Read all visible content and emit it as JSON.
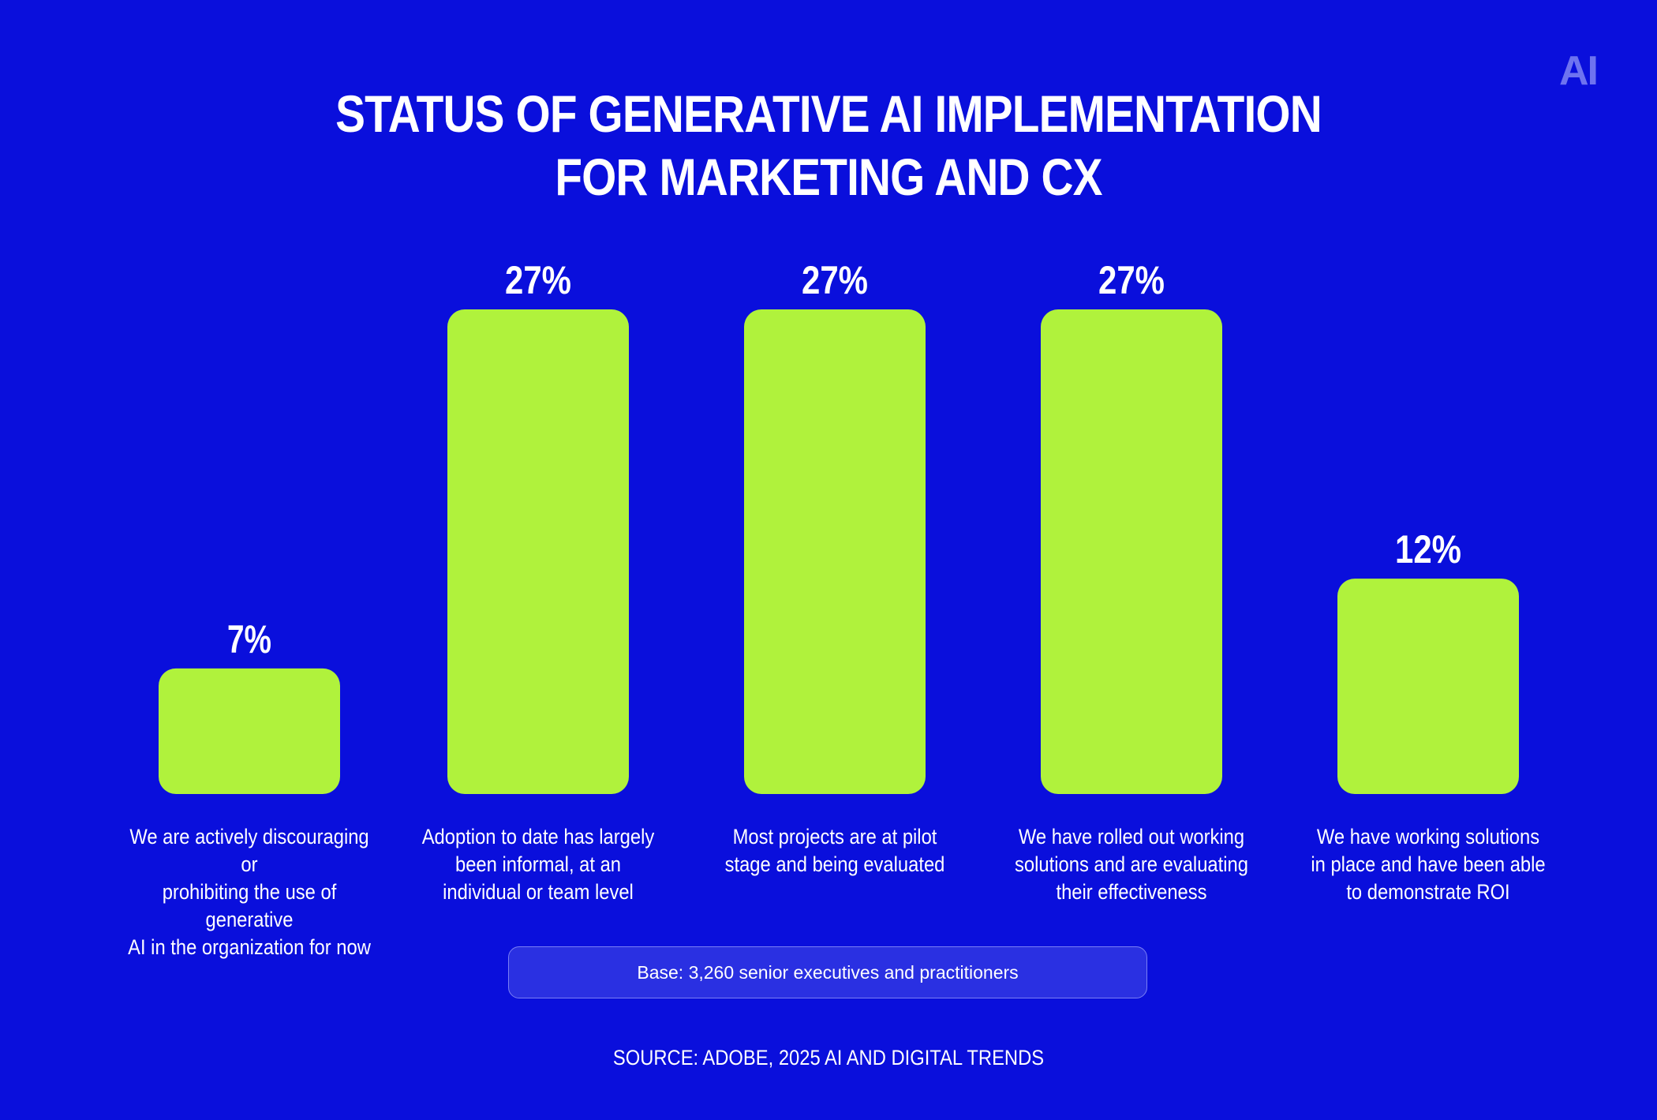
{
  "title_line1": "STATUS OF GENERATIVE AI IMPLEMENTATION",
  "title_line2": "FOR MARKETING AND CX",
  "logo_text": "AI",
  "base_note": "Base: 3,260 senior executives and practitioners",
  "source": "SOURCE: ADOBE, 2025 AI AND DIGITAL TRENDS",
  "colors": {
    "background": "#0a0fdc",
    "bar": "#b0f23c",
    "text": "#ffffff",
    "logo": "#6e73f0"
  },
  "chart_data": {
    "type": "bar",
    "title": "STATUS OF GENERATIVE AI IMPLEMENTATION FOR MARKETING AND CX",
    "categories": [
      "We are actively discouraging or prohibiting the use of generative AI in the organization for now",
      "Adoption to date has largely been informal, at an individual or team level",
      "Most projects are at pilot stage and being evaluated",
      "We have rolled out working solutions and are evaluating their effectiveness",
      "We have working solutions in place and have been able to demonstrate ROI"
    ],
    "category_lines": [
      [
        "We are actively discouraging or",
        "prohibiting the use of generative",
        "AI in the organization for now"
      ],
      [
        "Adoption to date has largely",
        "been informal, at an",
        "individual or team level"
      ],
      [
        "Most projects are at pilot",
        "stage and being evaluated"
      ],
      [
        "We have rolled out working",
        "solutions and are evaluating",
        "their effectiveness"
      ],
      [
        "We have working solutions",
        "in place and have been able",
        "to demonstrate ROI"
      ]
    ],
    "values": [
      7,
      27,
      27,
      27,
      12
    ],
    "value_labels": [
      "7%",
      "27%",
      "27%",
      "27%",
      "12%"
    ],
    "unit": "%",
    "xlabel": "",
    "ylabel": "",
    "ylim": [
      0,
      27
    ],
    "grid": false,
    "legend": "none"
  }
}
